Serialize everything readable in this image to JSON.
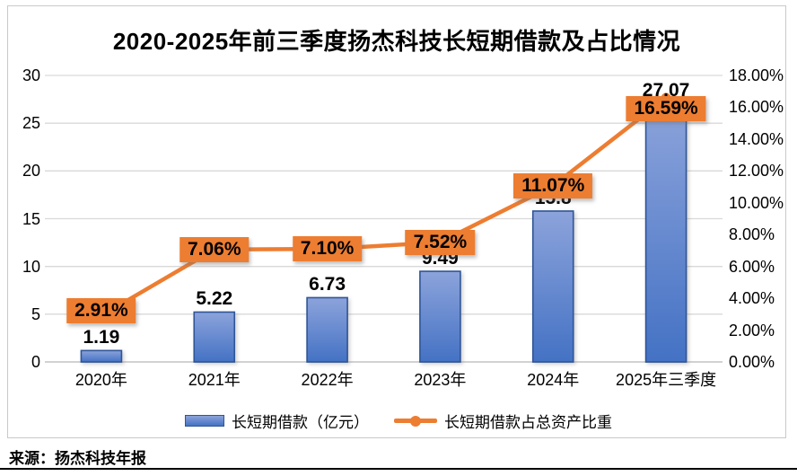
{
  "chart_data": {
    "type": "combo-bar-line",
    "title": "2020-2025年前三季度扬杰科技长短期借款及占比情况",
    "categories": [
      "2020年",
      "2021年",
      "2022年",
      "2023年",
      "2024年",
      "2025年三季度"
    ],
    "series": [
      {
        "name": "长短期借款（亿元）",
        "type": "bar",
        "axis": "left",
        "values": [
          1.19,
          5.22,
          6.73,
          9.49,
          15.8,
          27.07
        ],
        "labels": [
          "1.19",
          "5.22",
          "6.73",
          "9.49",
          "15.8",
          "27.07"
        ]
      },
      {
        "name": "长短期借款占总资产比重",
        "type": "line",
        "axis": "right",
        "values": [
          2.91,
          7.06,
          7.1,
          7.52,
          11.07,
          16.59
        ],
        "labels": [
          "2.91%",
          "7.06%",
          "7.10%",
          "7.52%",
          "11.07%",
          "16.59%"
        ]
      }
    ],
    "left_axis": {
      "min": 0,
      "max": 30,
      "step": 5,
      "tick_labels": [
        "0",
        "5",
        "10",
        "15",
        "20",
        "25",
        "30"
      ]
    },
    "right_axis": {
      "min": 0,
      "max": 18,
      "step": 2,
      "tick_labels": [
        "0.00%",
        "2.00%",
        "4.00%",
        "6.00%",
        "8.00%",
        "10.00%",
        "12.00%",
        "14.00%",
        "16.00%",
        "18.00%"
      ]
    },
    "grid": true,
    "legend_position": "bottom",
    "colors": {
      "bar_gradient_top": "#8CA3DB",
      "bar_gradient_bottom": "#4472C4",
      "bar_border": "#2F5597",
      "line": "#ED7D31",
      "label_box_bg": "#ED7D31",
      "gridline": "#D9D9D9",
      "axis_line": "#D2D2D2",
      "text": "#000000"
    }
  },
  "source_note": "来源：扬杰科技年报"
}
